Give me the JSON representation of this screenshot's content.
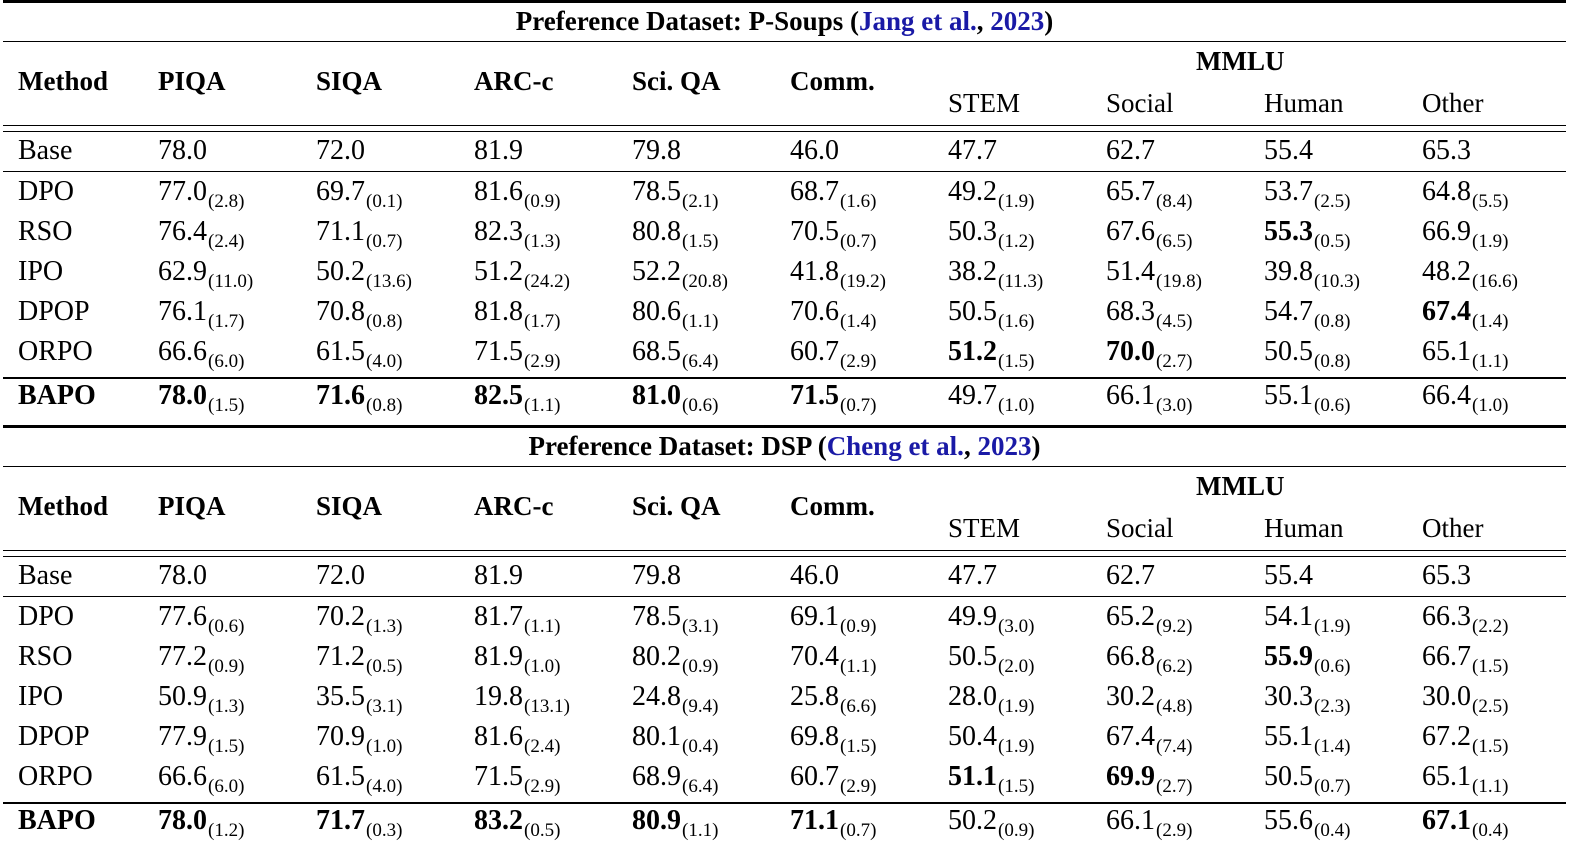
{
  "tables": [
    {
      "title_prefix": "Preference Dataset: P-Soups (",
      "cite_author": "Jang et al.",
      "cite_sep": ", ",
      "cite_year": "2023",
      "title_suffix": ")",
      "header": {
        "method": "Method",
        "cols": [
          "PIQA",
          "SIQA",
          "ARC-c",
          "Sci. QA",
          "Comm."
        ],
        "group": "MMLU",
        "subcols": [
          "STEM",
          "Social",
          "Human",
          "Other"
        ]
      },
      "rows": [
        {
          "method": "Base",
          "bold_method": false,
          "cells": [
            {
              "v": "78.0"
            },
            {
              "v": "72.0"
            },
            {
              "v": "81.9"
            },
            {
              "v": "79.8"
            },
            {
              "v": "46.0"
            },
            {
              "v": "47.7"
            },
            {
              "v": "62.7"
            },
            {
              "v": "55.4"
            },
            {
              "v": "65.3"
            }
          ]
        },
        {
          "method": "DPO",
          "bold_method": false,
          "cells": [
            {
              "v": "77.0",
              "s": "(2.8)"
            },
            {
              "v": "69.7",
              "s": "(0.1)"
            },
            {
              "v": "81.6",
              "s": "(0.9)"
            },
            {
              "v": "78.5",
              "s": "(2.1)"
            },
            {
              "v": "68.7",
              "s": "(1.6)"
            },
            {
              "v": "49.2",
              "s": "(1.9)"
            },
            {
              "v": "65.7",
              "s": "(8.4)"
            },
            {
              "v": "53.7",
              "s": "(2.5)"
            },
            {
              "v": "64.8",
              "s": "(5.5)"
            }
          ]
        },
        {
          "method": "RSO",
          "bold_method": false,
          "cells": [
            {
              "v": "76.4",
              "s": "(2.4)"
            },
            {
              "v": "71.1",
              "s": "(0.7)"
            },
            {
              "v": "82.3",
              "s": "(1.3)"
            },
            {
              "v": "80.8",
              "s": "(1.5)"
            },
            {
              "v": "70.5",
              "s": "(0.7)"
            },
            {
              "v": "50.3",
              "s": "(1.2)"
            },
            {
              "v": "67.6",
              "s": "(6.5)"
            },
            {
              "v": "55.3",
              "s": "(0.5)",
              "b": true
            },
            {
              "v": "66.9",
              "s": "(1.9)"
            }
          ]
        },
        {
          "method": "IPO",
          "bold_method": false,
          "cells": [
            {
              "v": "62.9",
              "s": "(11.0)"
            },
            {
              "v": "50.2",
              "s": "(13.6)"
            },
            {
              "v": "51.2",
              "s": "(24.2)"
            },
            {
              "v": "52.2",
              "s": "(20.8)"
            },
            {
              "v": "41.8",
              "s": "(19.2)"
            },
            {
              "v": "38.2",
              "s": "(11.3)"
            },
            {
              "v": "51.4",
              "s": "(19.8)"
            },
            {
              "v": "39.8",
              "s": "(10.3)"
            },
            {
              "v": "48.2",
              "s": "(16.6)"
            }
          ]
        },
        {
          "method": "DPOP",
          "bold_method": false,
          "cells": [
            {
              "v": "76.1",
              "s": "(1.7)"
            },
            {
              "v": "70.8",
              "s": "(0.8)"
            },
            {
              "v": "81.8",
              "s": "(1.7)"
            },
            {
              "v": "80.6",
              "s": "(1.1)"
            },
            {
              "v": "70.6",
              "s": "(1.4)"
            },
            {
              "v": "50.5",
              "s": "(1.6)"
            },
            {
              "v": "68.3",
              "s": "(4.5)"
            },
            {
              "v": "54.7",
              "s": "(0.8)"
            },
            {
              "v": "67.4",
              "s": "(1.4)",
              "b": true
            }
          ]
        },
        {
          "method": "ORPO",
          "bold_method": false,
          "cells": [
            {
              "v": "66.6",
              "s": "(6.0)"
            },
            {
              "v": "61.5",
              "s": "(4.0)"
            },
            {
              "v": "71.5",
              "s": "(2.9)"
            },
            {
              "v": "68.5",
              "s": "(6.4)"
            },
            {
              "v": "60.7",
              "s": "(2.9)"
            },
            {
              "v": "51.2",
              "s": "(1.5)",
              "b": true
            },
            {
              "v": "70.0",
              "s": "(2.7)",
              "b": true
            },
            {
              "v": "50.5",
              "s": "(0.8)"
            },
            {
              "v": "65.1",
              "s": "(1.1)"
            }
          ]
        },
        {
          "method": "BAPO",
          "bold_method": true,
          "cells": [
            {
              "v": "78.0",
              "s": "(1.5)",
              "b": true
            },
            {
              "v": "71.6",
              "s": "(0.8)",
              "b": true
            },
            {
              "v": "82.5",
              "s": "(1.1)",
              "b": true
            },
            {
              "v": "81.0",
              "s": "(0.6)",
              "b": true
            },
            {
              "v": "71.5",
              "s": "(0.7)",
              "b": true
            },
            {
              "v": "49.7",
              "s": "(1.0)"
            },
            {
              "v": "66.1",
              "s": "(3.0)"
            },
            {
              "v": "55.1",
              "s": "(0.6)"
            },
            {
              "v": "66.4",
              "s": "(1.0)"
            }
          ]
        }
      ]
    },
    {
      "title_prefix": "Preference Dataset: DSP (",
      "cite_author": "Cheng et al.",
      "cite_sep": ", ",
      "cite_year": "2023",
      "title_suffix": ")",
      "header": {
        "method": "Method",
        "cols": [
          "PIQA",
          "SIQA",
          "ARC-c",
          "Sci. QA",
          "Comm."
        ],
        "group": "MMLU",
        "subcols": [
          "STEM",
          "Social",
          "Human",
          "Other"
        ]
      },
      "rows": [
        {
          "method": "Base",
          "bold_method": false,
          "cells": [
            {
              "v": "78.0"
            },
            {
              "v": "72.0"
            },
            {
              "v": "81.9"
            },
            {
              "v": "79.8"
            },
            {
              "v": "46.0"
            },
            {
              "v": "47.7"
            },
            {
              "v": "62.7"
            },
            {
              "v": "55.4"
            },
            {
              "v": "65.3"
            }
          ]
        },
        {
          "method": "DPO",
          "bold_method": false,
          "cells": [
            {
              "v": "77.6",
              "s": "(0.6)"
            },
            {
              "v": "70.2",
              "s": "(1.3)"
            },
            {
              "v": "81.7",
              "s": "(1.1)"
            },
            {
              "v": "78.5",
              "s": "(3.1)"
            },
            {
              "v": "69.1",
              "s": "(0.9)"
            },
            {
              "v": "49.9",
              "s": "(3.0)"
            },
            {
              "v": "65.2",
              "s": "(9.2)"
            },
            {
              "v": "54.1",
              "s": "(1.9)"
            },
            {
              "v": "66.3",
              "s": "(2.2)"
            }
          ]
        },
        {
          "method": "RSO",
          "bold_method": false,
          "cells": [
            {
              "v": "77.2",
              "s": "(0.9)"
            },
            {
              "v": "71.2",
              "s": "(0.5)"
            },
            {
              "v": "81.9",
              "s": "(1.0)"
            },
            {
              "v": "80.2",
              "s": "(0.9)"
            },
            {
              "v": "70.4",
              "s": "(1.1)"
            },
            {
              "v": "50.5",
              "s": "(2.0)"
            },
            {
              "v": "66.8",
              "s": "(6.2)"
            },
            {
              "v": "55.9",
              "s": "(0.6)",
              "b": true
            },
            {
              "v": "66.7",
              "s": "(1.5)"
            }
          ]
        },
        {
          "method": "IPO",
          "bold_method": false,
          "cells": [
            {
              "v": "50.9",
              "s": "(1.3)"
            },
            {
              "v": "35.5",
              "s": "(3.1)"
            },
            {
              "v": "19.8",
              "s": "(13.1)"
            },
            {
              "v": "24.8",
              "s": "(9.4)"
            },
            {
              "v": "25.8",
              "s": "(6.6)"
            },
            {
              "v": "28.0",
              "s": "(1.9)"
            },
            {
              "v": "30.2",
              "s": "(4.8)"
            },
            {
              "v": "30.3",
              "s": "(2.3)"
            },
            {
              "v": "30.0",
              "s": "(2.5)"
            }
          ]
        },
        {
          "method": "DPOP",
          "bold_method": false,
          "cells": [
            {
              "v": "77.9",
              "s": "(1.5)"
            },
            {
              "v": "70.9",
              "s": "(1.0)"
            },
            {
              "v": "81.6",
              "s": "(2.4)"
            },
            {
              "v": "80.1",
              "s": "(0.4)"
            },
            {
              "v": "69.8",
              "s": "(1.5)"
            },
            {
              "v": "50.4",
              "s": "(1.9)"
            },
            {
              "v": "67.4",
              "s": "(7.4)"
            },
            {
              "v": "55.1",
              "s": "(1.4)"
            },
            {
              "v": "67.2",
              "s": "(1.5)"
            }
          ]
        },
        {
          "method": "ORPO",
          "bold_method": false,
          "cells": [
            {
              "v": "66.6",
              "s": "(6.0)"
            },
            {
              "v": "61.5",
              "s": "(4.0)"
            },
            {
              "v": "71.5",
              "s": "(2.9)"
            },
            {
              "v": "68.9",
              "s": "(6.4)"
            },
            {
              "v": "60.7",
              "s": "(2.9)"
            },
            {
              "v": "51.1",
              "s": "(1.5)",
              "b": true
            },
            {
              "v": "69.9",
              "s": "(2.7)",
              "b": true
            },
            {
              "v": "50.5",
              "s": "(0.7)"
            },
            {
              "v": "65.1",
              "s": "(1.1)"
            }
          ]
        },
        {
          "method": "BAPO",
          "bold_method": true,
          "cells": [
            {
              "v": "78.0",
              "s": "(1.2)",
              "b": true
            },
            {
              "v": "71.7",
              "s": "(0.3)",
              "b": true
            },
            {
              "v": "83.2",
              "s": "(0.5)",
              "b": true
            },
            {
              "v": "80.9",
              "s": "(1.1)",
              "b": true
            },
            {
              "v": "71.1",
              "s": "(0.7)",
              "b": true
            },
            {
              "v": "50.2",
              "s": "(0.9)"
            },
            {
              "v": "66.1",
              "s": "(2.9)"
            },
            {
              "v": "55.6",
              "s": "(0.4)"
            },
            {
              "v": "67.1",
              "s": "(0.4)",
              "b": true
            }
          ]
        }
      ]
    }
  ]
}
